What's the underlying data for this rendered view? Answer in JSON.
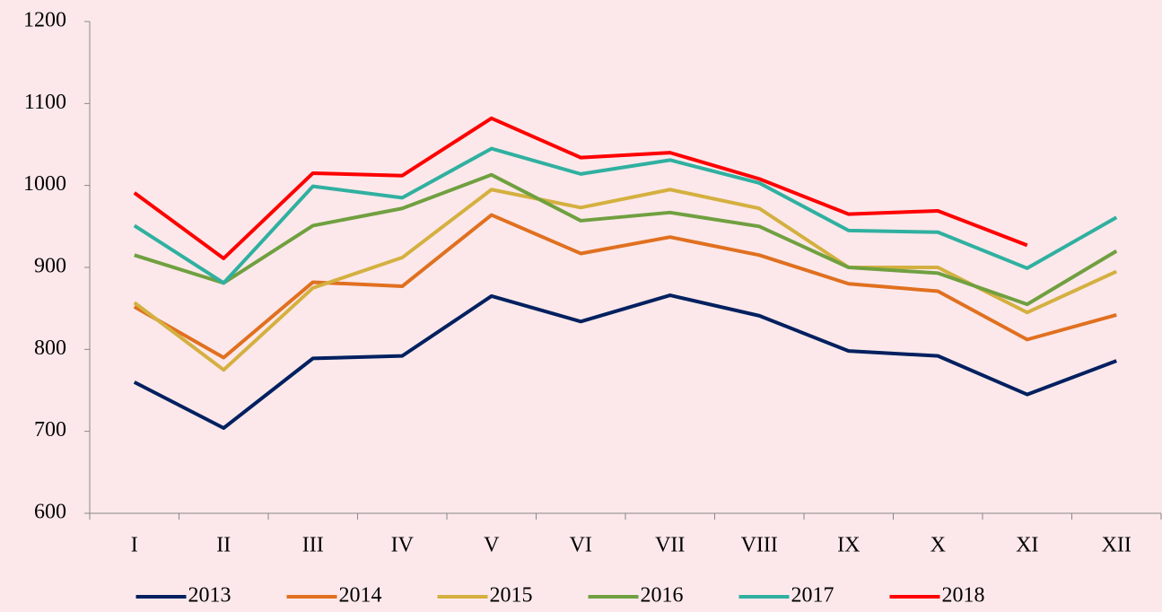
{
  "chart_data": {
    "type": "line",
    "categories": [
      "I",
      "II",
      "III",
      "IV",
      "V",
      "VI",
      "VII",
      "VIII",
      "IX",
      "X",
      "XI",
      "XII"
    ],
    "series": [
      {
        "name": "2013",
        "color": "#002060",
        "values": [
          760,
          704,
          789,
          792,
          865,
          834,
          866,
          841,
          798,
          792,
          745,
          786
        ]
      },
      {
        "name": "2014",
        "color": "#e07020",
        "values": [
          852,
          790,
          882,
          877,
          964,
          917,
          937,
          915,
          880,
          871,
          812,
          842
        ]
      },
      {
        "name": "2015",
        "color": "#d4b040",
        "values": [
          857,
          775,
          875,
          912,
          995,
          973,
          995,
          972,
          900,
          900,
          845,
          895
        ]
      },
      {
        "name": "2016",
        "color": "#70a040",
        "values": [
          915,
          881,
          951,
          972,
          1013,
          957,
          967,
          950,
          900,
          893,
          855,
          920
        ]
      },
      {
        "name": "2017",
        "color": "#30b0a0",
        "values": [
          951,
          881,
          999,
          985,
          1045,
          1014,
          1031,
          1003,
          945,
          943,
          899,
          961
        ]
      },
      {
        "name": "2018",
        "color": "#ff0000",
        "values": [
          991,
          911,
          1015,
          1012,
          1082,
          1034,
          1040,
          1008,
          965,
          969,
          927,
          null
        ]
      }
    ],
    "ylim": [
      600,
      1200
    ],
    "yticks": [
      600,
      700,
      800,
      900,
      1000,
      1100,
      1200
    ],
    "legend": "bottom"
  }
}
